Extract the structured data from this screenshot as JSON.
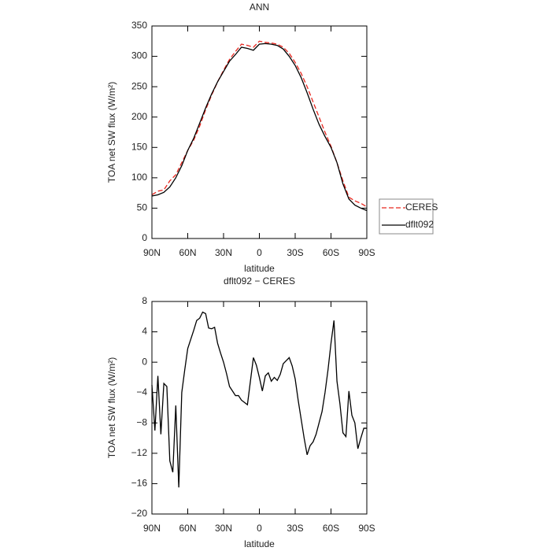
{
  "chart_data": [
    {
      "type": "line",
      "title": "ANN",
      "xlabel": "latitude",
      "ylabel": "TOA net SW flux (W/m²)",
      "x": [
        90,
        85,
        80,
        75,
        70,
        65,
        60,
        55,
        50,
        45,
        40,
        35,
        30,
        25,
        20,
        15,
        10,
        5,
        0,
        -5,
        -10,
        -15,
        -20,
        -25,
        -30,
        -35,
        -40,
        -45,
        -50,
        -55,
        -60,
        -65,
        -70,
        -75,
        -80,
        -85,
        -90
      ],
      "series": [
        {
          "name": "CERES",
          "color": "#e8271f",
          "linestyle": "dashed",
          "values": [
            72,
            78,
            80,
            95,
            105,
            125,
            145,
            162,
            185,
            212,
            236,
            258,
            277,
            295,
            308,
            320,
            318,
            315,
            325,
            323,
            322,
            320,
            315,
            305,
            290,
            272,
            250,
            225,
            200,
            175,
            152,
            125,
            95,
            68,
            62,
            58,
            52
          ]
        },
        {
          "name": "dflt092",
          "color": "#000000",
          "linestyle": "solid",
          "values": [
            70,
            72,
            76,
            85,
            100,
            120,
            145,
            165,
            190,
            215,
            238,
            258,
            275,
            292,
            303,
            315,
            313,
            310,
            320,
            321,
            320,
            318,
            312,
            300,
            285,
            265,
            240,
            213,
            188,
            168,
            150,
            125,
            90,
            65,
            55,
            50,
            46
          ]
        }
      ],
      "xlim": [
        90,
        -90
      ],
      "xticks": [
        {
          "value": 90,
          "label": "90N"
        },
        {
          "value": 60,
          "label": "60N"
        },
        {
          "value": 30,
          "label": "30N"
        },
        0,
        {
          "value": -30,
          "label": "30S"
        },
        {
          "value": -60,
          "label": "60S"
        },
        {
          "value": -90,
          "label": "90S"
        }
      ],
      "ylim": [
        0,
        350
      ],
      "yticks": [
        0,
        50,
        100,
        150,
        200,
        250,
        300,
        350
      ],
      "legend": "right"
    },
    {
      "type": "line",
      "title": "dflt092 − CERES",
      "xlabel": "latitude",
      "ylabel": "TOA net SW flux (W/m²)",
      "x": [
        90,
        87.5,
        85,
        82.5,
        80,
        77.5,
        75,
        72.5,
        70,
        67.5,
        65,
        62.5,
        60,
        57.5,
        55,
        52.5,
        50,
        47.5,
        45,
        42.5,
        40,
        37.5,
        35,
        32.5,
        30,
        27.5,
        25,
        22.5,
        20,
        17.5,
        15,
        12.5,
        10,
        7.5,
        5,
        2.5,
        0,
        -2.5,
        -5,
        -7.5,
        -10,
        -12.5,
        -15,
        -17.5,
        -20,
        -22.5,
        -25,
        -27.5,
        -30,
        -32.5,
        -35,
        -37.5,
        -40,
        -42.5,
        -45,
        -47.5,
        -50,
        -52.5,
        -55,
        -57.5,
        -60,
        -62.5,
        -65,
        -67.5,
        -70,
        -72.5,
        -75,
        -77.5,
        -80,
        -82.5,
        -85,
        -87.5,
        -90
      ],
      "values": [
        -3,
        -9,
        -1.8,
        -9.5,
        -2.8,
        -3.2,
        -13,
        -14.5,
        -5.7,
        -16.5,
        -4,
        -1,
        1.8,
        3,
        4.2,
        5.5,
        5.8,
        6.6,
        6.4,
        4.5,
        4.4,
        4.6,
        2.5,
        1.2,
        0,
        -1.5,
        -3.2,
        -3.8,
        -4.4,
        -4.4,
        -5.0,
        -5.3,
        -5.6,
        -2.5,
        0.6,
        -0.4,
        -2,
        -3.8,
        -1.8,
        -1.4,
        -2.5,
        -2,
        -2.4,
        -1.6,
        -0.2,
        0.2,
        0.6,
        -0.5,
        -2.2,
        -5,
        -7.5,
        -10,
        -12.2,
        -11,
        -10.5,
        -9.5,
        -8,
        -6.5,
        -4,
        -1,
        2.5,
        5.5,
        -2.5,
        -5.5,
        -9.3,
        -9.8,
        -3.8,
        -7,
        -8,
        -11.4,
        -10,
        -8.7,
        -8.7
      ],
      "color": "#000000",
      "xlim": [
        90,
        -90
      ],
      "xticks": [
        {
          "value": 90,
          "label": "90N"
        },
        {
          "value": 60,
          "label": "60N"
        },
        {
          "value": 30,
          "label": "30N"
        },
        0,
        {
          "value": -30,
          "label": "30S"
        },
        {
          "value": -60,
          "label": "60S"
        },
        {
          "value": -90,
          "label": "90S"
        }
      ],
      "ylim": [
        -20,
        8
      ],
      "yticks": [
        {
          "value": -20,
          "label": "−20"
        },
        {
          "value": -16,
          "label": "−16"
        },
        {
          "value": -12,
          "label": "−12"
        },
        {
          "value": -8,
          "label": "−8"
        },
        {
          "value": -4,
          "label": "−4"
        },
        0,
        4,
        8
      ]
    }
  ]
}
